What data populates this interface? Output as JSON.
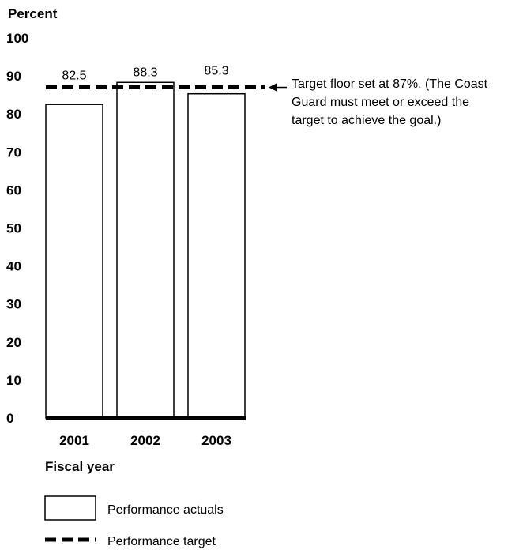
{
  "chart_data": {
    "type": "bar",
    "ylabel": "Percent",
    "xlabel": "Fiscal year",
    "categories": [
      "2001",
      "2002",
      "2003"
    ],
    "values": [
      82.5,
      88.3,
      85.3
    ],
    "value_labels": [
      "82.5",
      "88.3",
      "85.3"
    ],
    "ylim": [
      0,
      100
    ],
    "yticks": [
      0,
      10,
      20,
      30,
      40,
      50,
      60,
      70,
      80,
      90,
      100
    ],
    "target": 87,
    "annotation_lines": [
      "Target floor set at 87%. (The Coast",
      "Guard must meet or exceed the",
      "target to achieve the goal.)"
    ],
    "legend": [
      "Performance actuals",
      "Performance target"
    ],
    "grid": false,
    "colors": {
      "bar_fill": "#ffffff",
      "stroke": "#000000"
    }
  }
}
